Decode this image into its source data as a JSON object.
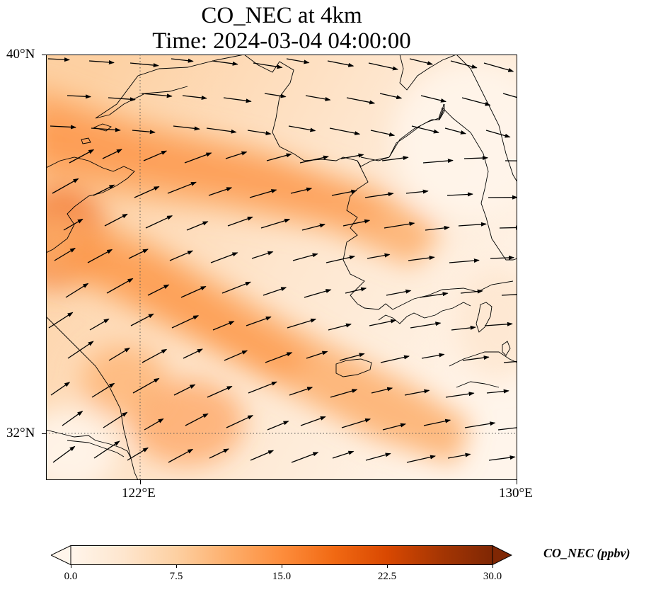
{
  "title": {
    "line1": "CO_NEC at 4km",
    "line2": "Time: 2024-03-04 04:00:00"
  },
  "map": {
    "lat_range": [
      30.9,
      40
    ],
    "lon_range": [
      120,
      130
    ],
    "gridlines": {
      "lat": 32,
      "lon": 122,
      "style": "dotted"
    },
    "lat_ticks": [
      {
        "value": 40,
        "label": "40°N"
      },
      {
        "value": 32,
        "label": "32°N"
      }
    ],
    "lon_ticks": [
      {
        "value": 122,
        "label": "122°E"
      },
      {
        "value": 130,
        "label": "130°E"
      }
    ],
    "field_description": "CO concentration shading with a diagonal high band running from the Shandong/Bohai area southeast toward the Korean Peninsula; wind vectors mostly pointing east to east-northeast",
    "wind_direction": "west-southwesterly"
  },
  "colorbar": {
    "label": "CO_NEC (ppbv)",
    "min": 0,
    "max": 30,
    "extend": "both",
    "colormap": [
      "#fff5eb",
      "#fee6ce",
      "#fdd0a2",
      "#fdae6b",
      "#fd8d3c",
      "#f16913",
      "#d94801",
      "#a63603",
      "#7f2704"
    ],
    "ticks": [
      {
        "value": 0,
        "label": "0.0"
      },
      {
        "value": 7.5,
        "label": "7.5"
      },
      {
        "value": 15,
        "label": "15.0"
      },
      {
        "value": 22.5,
        "label": "22.5"
      },
      {
        "value": 30,
        "label": "30.0"
      }
    ]
  }
}
